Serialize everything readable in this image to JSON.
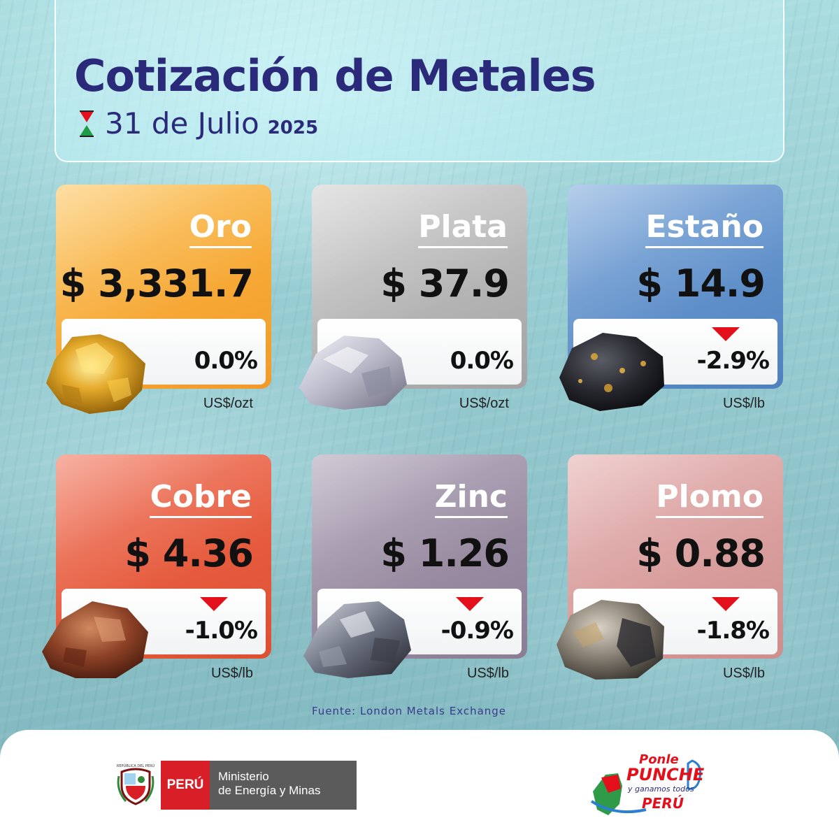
{
  "header": {
    "title": "Cotización de Metales",
    "date_main": "31 de Julio",
    "date_year": "2025"
  },
  "metals": [
    {
      "name": "Oro",
      "price": "$ 3,331.7",
      "change": "0.0%",
      "unit": "US$/ozt",
      "trend": "flat",
      "color": "#f7ae3c"
    },
    {
      "name": "Plata",
      "price": "$ 37.9",
      "change": "0.0%",
      "unit": "US$/ozt",
      "trend": "flat",
      "color": "#b4b4b4"
    },
    {
      "name": "Estaño",
      "price": "$ 14.9",
      "change": "-2.9%",
      "unit": "US$/lb",
      "trend": "down",
      "color": "#5f8fc9"
    },
    {
      "name": "Cobre",
      "price": "$ 4.36",
      "change": "-1.0%",
      "unit": "US$/lb",
      "trend": "down",
      "color": "#e55a3c"
    },
    {
      "name": "Zinc",
      "price": "$ 1.26",
      "change": "-0.9%",
      "unit": "US$/lb",
      "trend": "down",
      "color": "#988aa0"
    },
    {
      "name": "Plomo",
      "price": "$ 0.88",
      "change": "-1.8%",
      "unit": "US$/lb",
      "trend": "down",
      "color": "#d79c9b"
    }
  ],
  "source": "Fuente: London Metals Exchange",
  "footer": {
    "peru_label": "PERÚ",
    "ministry_line1": "Ministerio",
    "ministry_line2": "de Energía y Minas",
    "shield_text": "REPÚBLICA DEL PERÚ",
    "campaign_line1": "Ponle",
    "campaign_line2": "PUNCHE",
    "campaign_line3": "y ganamos todos",
    "campaign_line4": "PERÚ"
  },
  "colors": {
    "title": "#2b2a7a",
    "down_arrow": "#e3101b",
    "peru_red": "#d81e26",
    "ministry_gray": "#5b5b5b"
  }
}
